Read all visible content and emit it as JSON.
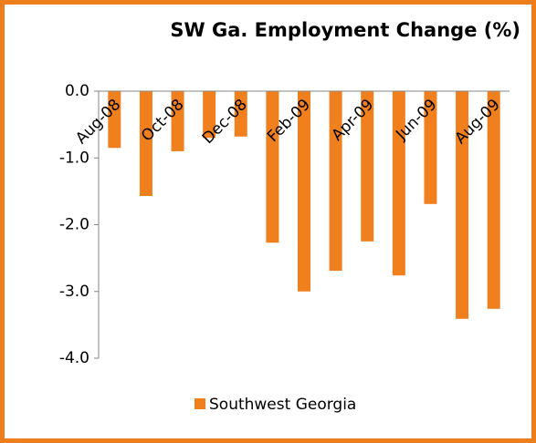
{
  "chart_data": {
    "type": "bar",
    "title": "SW Ga. Employment Change (%)",
    "categories": [
      "Aug-08",
      null,
      "Oct-08",
      null,
      "Dec-08",
      null,
      "Feb-09",
      null,
      "Apr-09",
      null,
      "Jun-09",
      null,
      "Aug-09"
    ],
    "series": [
      {
        "name": "Southwest Georgia",
        "color": "#f07f1e",
        "values": [
          -0.85,
          -1.57,
          -0.9,
          -0.7,
          -0.68,
          -2.27,
          -3.0,
          -2.69,
          -2.25,
          -2.76,
          -1.69,
          -3.41,
          -3.26
        ]
      }
    ],
    "ylim": [
      -4,
      0
    ],
    "yticks": [
      {
        "value": 0,
        "label": "0.0"
      },
      {
        "value": -1,
        "label": "-1.0"
      },
      {
        "value": -2,
        "label": "-2.0"
      },
      {
        "value": -3,
        "label": "-3.0"
      },
      {
        "value": -4,
        "label": "-4.0"
      }
    ],
    "grid": false,
    "legend": "bottom"
  }
}
